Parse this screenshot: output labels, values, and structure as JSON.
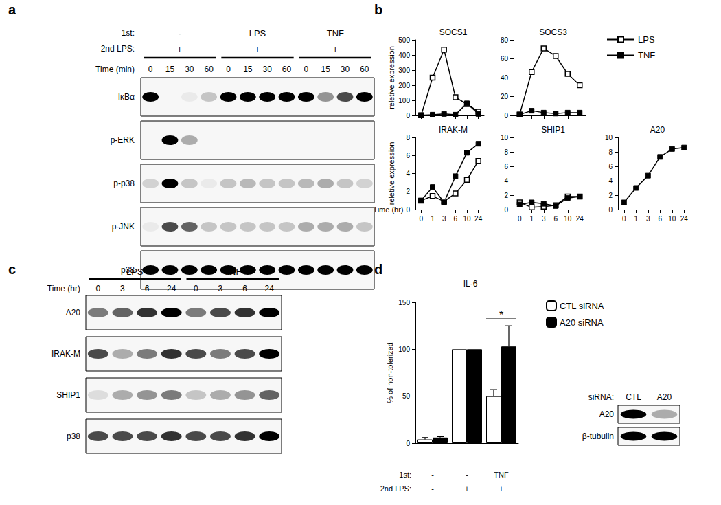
{
  "panels": [
    "a",
    "b",
    "c",
    "d"
  ],
  "blot_a": {
    "first_label": "1st:",
    "second_label": "2nd LPS:",
    "time_label": "Time (min)",
    "groups": [
      {
        "first": "-",
        "second": "+",
        "times": [
          0,
          15,
          30,
          60
        ]
      },
      {
        "first": "LPS",
        "second": "+",
        "times": [
          0,
          15,
          30,
          60
        ]
      },
      {
        "first": "TNF",
        "second": "+",
        "times": [
          0,
          15,
          30,
          60
        ]
      }
    ],
    "bands": [
      {
        "name": "IκBα",
        "intensity": [
          1,
          0,
          0.05,
          0.2,
          1,
          1,
          1,
          1,
          1,
          0.4,
          0.7,
          1
        ]
      },
      {
        "name": "p-ERK",
        "intensity": [
          0,
          1,
          0.3,
          0,
          0,
          0,
          0,
          0,
          0,
          0,
          0,
          0
        ]
      },
      {
        "name": "p-p38",
        "intensity": [
          0.15,
          1,
          0.2,
          0.05,
          0.2,
          0.25,
          0.2,
          0.2,
          0.25,
          0.3,
          0.2,
          0.15
        ]
      },
      {
        "name": "p-JNK",
        "intensity": [
          0.05,
          0.7,
          0.6,
          0.2,
          0.2,
          0.2,
          0.2,
          0.2,
          0.3,
          0.3,
          0.3,
          0.2
        ]
      },
      {
        "name": "p38",
        "intensity": [
          1,
          1,
          1,
          1,
          1,
          1,
          1,
          1,
          1,
          1,
          1,
          1
        ]
      }
    ]
  },
  "blot_c": {
    "time_label": "Time (hr)",
    "groups": [
      {
        "first": "LPS",
        "times": [
          0,
          3,
          6,
          24
        ]
      },
      {
        "first": "TNF",
        "times": [
          0,
          3,
          6,
          24
        ]
      }
    ],
    "bands": [
      {
        "name": "A20",
        "intensity": [
          0.5,
          0.6,
          0.8,
          1,
          0.5,
          0.7,
          0.8,
          1
        ]
      },
      {
        "name": "IRAK-M",
        "intensity": [
          0.7,
          0.3,
          0.5,
          0.8,
          0.7,
          0.5,
          0.7,
          1
        ]
      },
      {
        "name": "SHIP1",
        "intensity": [
          0.1,
          0.3,
          0.4,
          0.5,
          0.2,
          0.3,
          0.4,
          0.6
        ]
      },
      {
        "name": "p38",
        "intensity": [
          0.7,
          0.7,
          0.7,
          0.8,
          0.7,
          0.7,
          0.8,
          1
        ]
      }
    ]
  },
  "blot_d": {
    "lane_label": "siRNA:",
    "lanes": [
      "CTL",
      "A20"
    ],
    "bands": [
      {
        "name": "A20",
        "intensity": [
          1,
          0.3
        ]
      },
      {
        "name": "β-tubulin",
        "intensity": [
          1,
          1
        ]
      }
    ]
  },
  "chart_data": [
    {
      "type": "line",
      "title": "SOCS1",
      "ylabel": "reletive expression",
      "categories": [
        "0",
        "1",
        "3",
        "6",
        "10",
        "24"
      ],
      "series": [
        {
          "name": "LPS",
          "color": "#000000",
          "marker": "square-open",
          "values": [
            1,
            250,
            435,
            120,
            75,
            25
          ]
        },
        {
          "name": "TNF",
          "color": "#000000",
          "marker": "square",
          "values": [
            1,
            5,
            10,
            5,
            80,
            10
          ]
        }
      ],
      "ylim": [
        0,
        500
      ],
      "yticks": [
        0,
        100,
        200,
        300,
        400,
        500
      ],
      "grid": false,
      "tick_labels": "y"
    },
    {
      "type": "line",
      "title": "SOCS3",
      "categories": [
        "0",
        "1",
        "3",
        "6",
        "10",
        "24"
      ],
      "series": [
        {
          "name": "LPS",
          "color": "#000000",
          "marker": "square-open",
          "values": [
            1,
            46,
            71,
            63,
            44,
            32
          ]
        },
        {
          "name": "TNF",
          "color": "#000000",
          "marker": "square",
          "values": [
            1,
            5,
            3,
            2,
            3,
            3
          ]
        }
      ],
      "ylim": [
        0,
        80
      ],
      "yticks": [
        0,
        20,
        40,
        60,
        80
      ],
      "grid": false,
      "tick_labels": "y",
      "legend": "top right"
    },
    {
      "type": "line",
      "title": "IRAK-M",
      "ylabel": "reletive expression",
      "xlabel": "Time (hr)",
      "categories": [
        "0",
        "1",
        "3",
        "6",
        "10",
        "24"
      ],
      "series": [
        {
          "name": "LPS",
          "color": "#000000",
          "marker": "square-open",
          "values": [
            1,
            1.5,
            0.9,
            1.8,
            3.3,
            5.4
          ]
        },
        {
          "name": "TNF",
          "color": "#000000",
          "marker": "square",
          "values": [
            1,
            2.5,
            0.8,
            3.7,
            6.3,
            7.3
          ]
        }
      ],
      "ylim": [
        0,
        8
      ],
      "yticks": [
        0,
        2,
        4,
        6,
        8
      ],
      "grid": false
    },
    {
      "type": "line",
      "title": "SHIP1",
      "categories": [
        "0",
        "1",
        "3",
        "6",
        "10",
        "24"
      ],
      "series": [
        {
          "name": "LPS",
          "color": "#000000",
          "marker": "square-open",
          "values": [
            1,
            0.3,
            0.4,
            0.6,
            1.8,
            1.8
          ]
        },
        {
          "name": "TNF",
          "color": "#000000",
          "marker": "square",
          "values": [
            0.7,
            1,
            0.8,
            0.5,
            1.6,
            1.8
          ]
        }
      ],
      "ylim": [
        0,
        10
      ],
      "yticks": [
        0,
        2,
        4,
        6,
        8,
        10
      ],
      "grid": false
    },
    {
      "type": "line",
      "title": "A20",
      "categories": [
        "0",
        "1",
        "3",
        "6",
        "10",
        "24"
      ],
      "series": [
        {
          "name": "TNF",
          "color": "#000000",
          "marker": "square",
          "values": [
            1,
            3,
            4.7,
            7.3,
            8.4,
            8.6
          ]
        }
      ],
      "ylim": [
        0,
        10
      ],
      "yticks": [
        0,
        2,
        4,
        6,
        8,
        10
      ],
      "grid": false
    },
    {
      "type": "bar",
      "title": "IL-6",
      "ylabel": "% of non-tolerized",
      "categories": [
        "-",
        "-",
        "TNF"
      ],
      "category_label": "1st:",
      "categories2": [
        "-",
        "+",
        "+"
      ],
      "category2_label": "2nd LPS:",
      "series": [
        {
          "name": "CTL siRNA",
          "color": "#ffffff",
          "values": [
            4,
            100,
            50
          ],
          "errors": [
            2,
            0,
            7
          ]
        },
        {
          "name": "A20 siRNA",
          "color": "#000000",
          "values": [
            6,
            100,
            103
          ],
          "errors": [
            1,
            0,
            22
          ]
        }
      ],
      "annotations": [
        {
          "text": "*",
          "category": "TNF"
        }
      ],
      "ylim": [
        0,
        150
      ],
      "yticks": [
        0,
        50,
        100,
        150
      ],
      "grid": false,
      "legend": "top right"
    }
  ]
}
